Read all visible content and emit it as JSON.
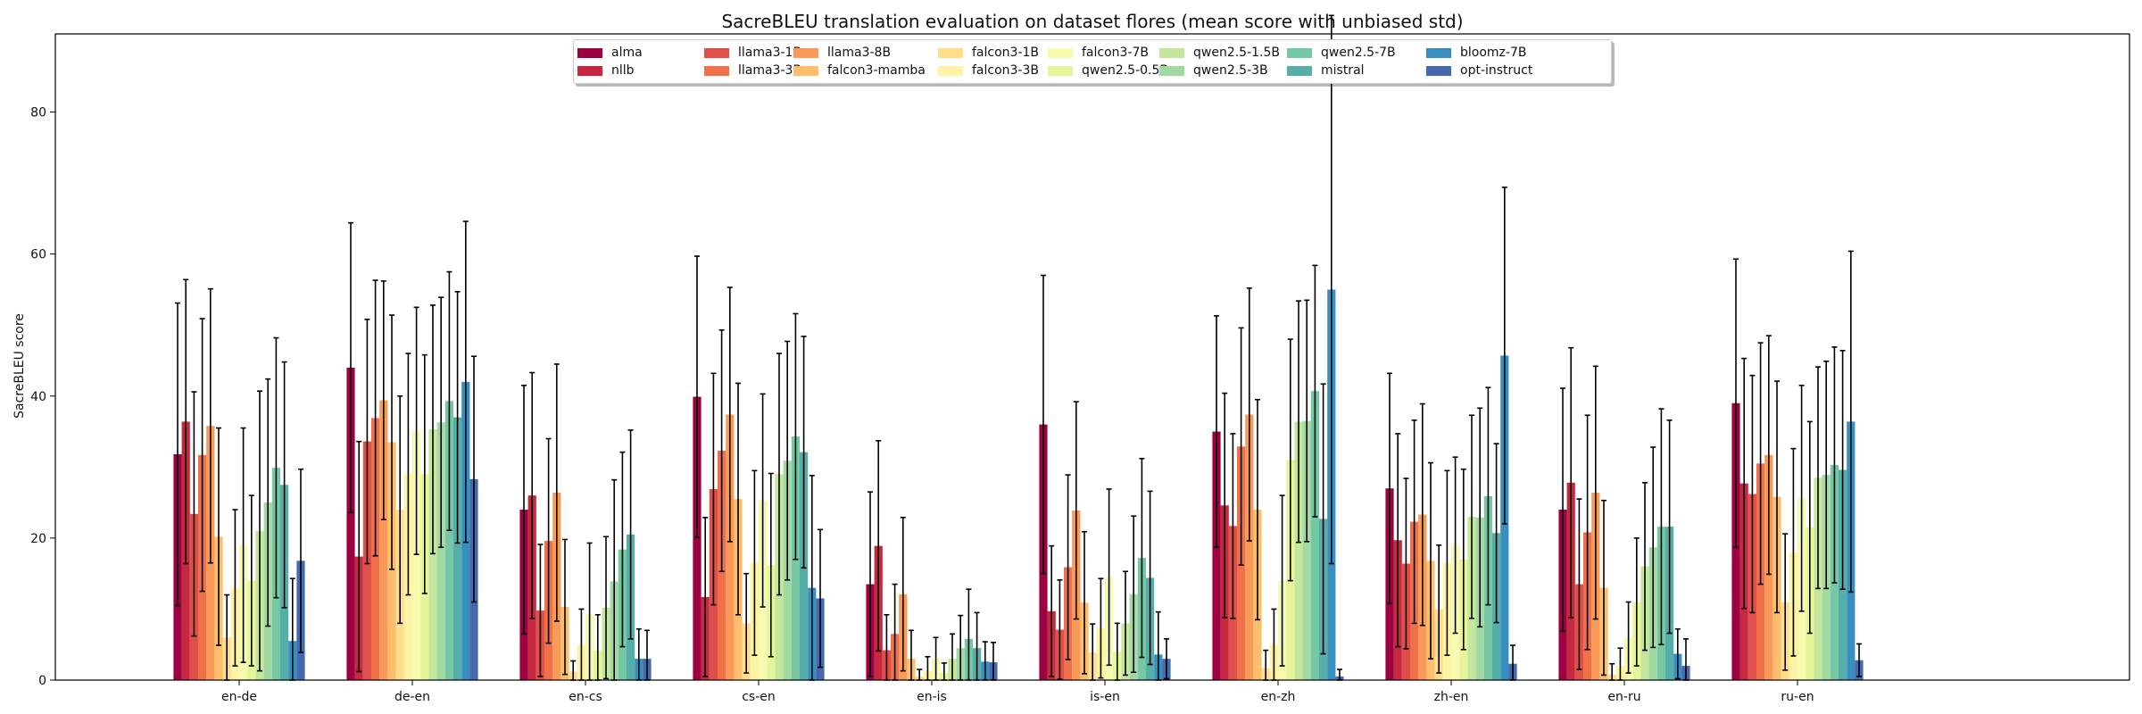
{
  "chart_data": {
    "type": "bar",
    "title": "SacreBLEU translation evaluation on dataset flores (mean score with unbiased std)",
    "xlabel": "",
    "ylabel": "SacreBLEU score",
    "ylim": [
      0,
      91
    ],
    "yticks": [
      0,
      20,
      40,
      60,
      80
    ],
    "legend_position": "top-center",
    "grid": false,
    "categories": [
      "en-de",
      "de-en",
      "en-cs",
      "cs-en",
      "en-is",
      "is-en",
      "en-zh",
      "zh-en",
      "en-ru",
      "ru-en"
    ],
    "series": [
      {
        "name": "alma",
        "color": "#9e0142",
        "values": [
          31.8,
          44.0,
          24.0,
          39.9,
          13.5,
          36.0,
          35.0,
          27.0,
          24.0,
          39.0
        ],
        "std": [
          21.3,
          20.4,
          17.5,
          19.8,
          13.0,
          21.0,
          16.3,
          16.2,
          17.1,
          20.3
        ]
      },
      {
        "name": "nllb",
        "color": "#c5283f",
        "values": [
          36.4,
          17.4,
          26.0,
          11.7,
          18.9,
          9.7,
          24.6,
          19.7,
          27.8,
          27.7
        ],
        "std": [
          20.0,
          16.2,
          17.3,
          11.2,
          14.8,
          9.2,
          15.8,
          15.0,
          19.0,
          17.6
        ]
      },
      {
        "name": "llama3-1B",
        "color": "#e0504a",
        "values": [
          23.4,
          33.6,
          9.8,
          26.9,
          4.2,
          7.1,
          21.7,
          16.4,
          13.5,
          26.2
        ],
        "std": [
          17.2,
          17.2,
          9.3,
          16.3,
          5.0,
          7.0,
          13.0,
          12.0,
          12.0,
          16.7
        ]
      },
      {
        "name": "llama3-3B",
        "color": "#f0704a",
        "values": [
          31.7,
          36.9,
          19.6,
          32.3,
          6.5,
          15.9,
          32.9,
          22.3,
          20.8,
          30.5
        ],
        "std": [
          19.2,
          19.4,
          14.4,
          17.0,
          7.0,
          13.0,
          16.7,
          14.3,
          16.5,
          17.0
        ]
      },
      {
        "name": "llama3-8B",
        "color": "#f99a58",
        "values": [
          35.8,
          39.4,
          26.4,
          37.4,
          12.1,
          23.9,
          37.4,
          23.3,
          26.4,
          31.7
        ],
        "std": [
          19.3,
          16.8,
          18.1,
          17.9,
          10.8,
          15.3,
          17.8,
          15.6,
          17.8,
          16.8
        ]
      },
      {
        "name": "falcon3-mamba",
        "color": "#fdbe6e",
        "values": [
          20.2,
          33.5,
          10.3,
          25.5,
          3.0,
          10.9,
          24.0,
          16.8,
          13.0,
          25.8
        ],
        "std": [
          15.3,
          17.9,
          9.5,
          16.3,
          4.0,
          10.0,
          15.5,
          13.8,
          12.3,
          16.3
        ]
      },
      {
        "name": "falcon3-1B",
        "color": "#fede8a",
        "values": [
          6.0,
          24.0,
          1.2,
          8.0,
          0.5,
          3.9,
          1.7,
          10.0,
          0.8,
          11.0
        ],
        "std": [
          6.0,
          16.0,
          1.5,
          7.0,
          1.0,
          4.0,
          2.5,
          9.0,
          1.5,
          9.6
        ]
      },
      {
        "name": "falcon3-3B",
        "color": "#fff3a6",
        "values": [
          13.0,
          29.0,
          5.0,
          16.5,
          1.3,
          7.3,
          5.0,
          16.5,
          2.0,
          18.0
        ],
        "std": [
          11.0,
          17.0,
          5.0,
          13.0,
          2.0,
          7.0,
          5.0,
          13.0,
          2.5,
          14.6
        ]
      },
      {
        "name": "falcon3-7B",
        "color": "#f7fbae",
        "values": [
          19.0,
          35.1,
          9.3,
          25.3,
          3.0,
          14.5,
          14.0,
          19.0,
          6.0,
          25.6
        ],
        "std": [
          16.5,
          17.4,
          10.0,
          15.0,
          3.0,
          12.4,
          12.0,
          12.4,
          5.0,
          15.9
        ]
      },
      {
        "name": "qwen2.5-0.5B",
        "color": "#e6f59a",
        "values": [
          14.0,
          29.0,
          4.2,
          16.2,
          1.0,
          4.0,
          31.0,
          17.0,
          11.0,
          21.5
        ],
        "std": [
          12.0,
          16.8,
          5.0,
          12.9,
          1.4,
          4.0,
          17.0,
          12.7,
          9.0,
          14.9
        ]
      },
      {
        "name": "qwen2.5-1.5B",
        "color": "#c5e79d",
        "values": [
          21.0,
          35.3,
          10.2,
          29.0,
          3.0,
          8.0,
          36.4,
          23.0,
          16.0,
          28.5
        ],
        "std": [
          19.7,
          17.5,
          10.0,
          17.0,
          3.5,
          7.3,
          17.0,
          14.3,
          11.8,
          15.6
        ]
      },
      {
        "name": "qwen2.5-3B",
        "color": "#a1d9a3",
        "values": [
          25.0,
          36.3,
          13.9,
          30.9,
          4.5,
          12.1,
          36.5,
          22.9,
          18.7,
          28.9
        ],
        "std": [
          17.4,
          17.6,
          14.3,
          16.8,
          4.6,
          11.0,
          17.0,
          15.4,
          14.1,
          16.0
        ]
      },
      {
        "name": "qwen2.5-7B",
        "color": "#76c8a4",
        "values": [
          29.9,
          39.3,
          18.4,
          34.3,
          5.8,
          17.2,
          40.7,
          25.9,
          21.6,
          30.3
        ],
        "std": [
          18.3,
          18.2,
          13.7,
          17.3,
          7.0,
          14.0,
          17.7,
          15.3,
          16.6,
          16.6
        ]
      },
      {
        "name": "mistral",
        "color": "#54aeaa",
        "values": [
          27.5,
          37.0,
          20.5,
          32.1,
          4.5,
          14.4,
          22.7,
          20.7,
          21.6,
          29.6
        ],
        "std": [
          17.3,
          17.7,
          14.7,
          16.3,
          5.0,
          12.2,
          19.0,
          12.6,
          15.0,
          16.8
        ]
      },
      {
        "name": "bloomz-7B",
        "color": "#3a8ebd",
        "values": [
          5.5,
          42.0,
          3.0,
          13.0,
          2.6,
          3.6,
          55.0,
          45.7,
          3.7,
          36.4
        ],
        "std": [
          8.8,
          22.6,
          4.2,
          15.8,
          2.8,
          6.0,
          38.6,
          23.7,
          3.5,
          24.0
        ]
      },
      {
        "name": "opt-instruct",
        "color": "#4668ad",
        "values": [
          16.8,
          28.3,
          3.0,
          11.5,
          2.5,
          3.0,
          0.5,
          2.3,
          2.0,
          2.8
        ],
        "std": [
          12.9,
          17.3,
          4.0,
          9.7,
          2.8,
          2.8,
          1.0,
          2.6,
          3.8,
          2.3
        ]
      }
    ]
  }
}
